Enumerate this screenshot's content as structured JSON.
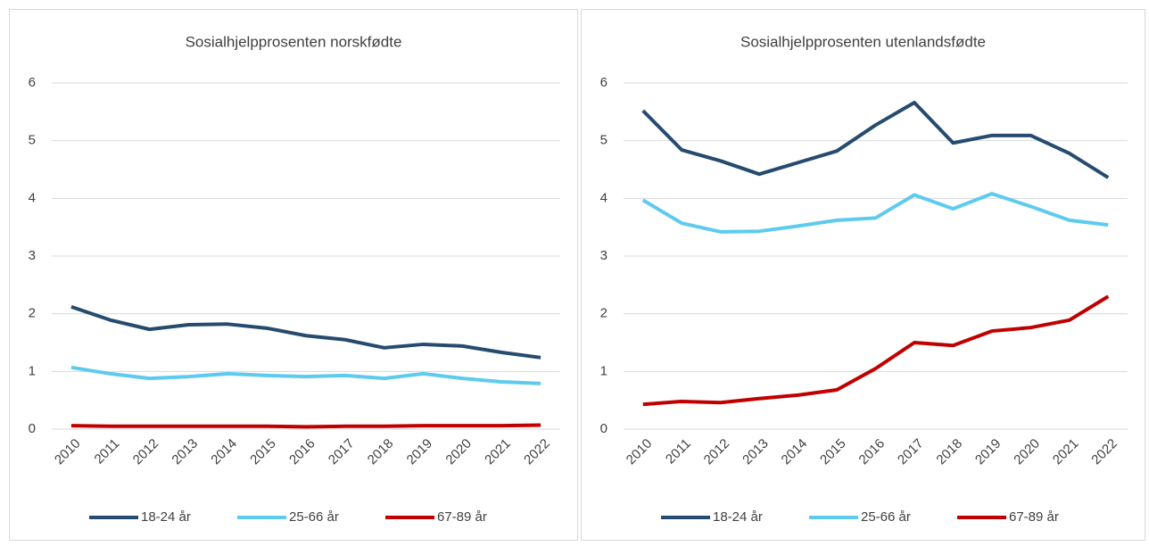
{
  "chart_data": [
    {
      "type": "line",
      "title": "Sosialhjelpprosenten norskfødte",
      "categories": [
        "2010",
        "2011",
        "2012",
        "2013",
        "2014",
        "2015",
        "2016",
        "2017",
        "2018",
        "2019",
        "2020",
        "2021",
        "2022"
      ],
      "ylim": [
        0,
        6
      ],
      "yticks": [
        0,
        1,
        2,
        3,
        4,
        5,
        6
      ],
      "grid": true,
      "legend": "bottom",
      "series": [
        {
          "name": "18-24 år",
          "color": "#264b6e",
          "values": [
            2.12,
            1.89,
            1.73,
            1.81,
            1.82,
            1.75,
            1.62,
            1.55,
            1.41,
            1.47,
            1.44,
            1.33,
            1.24
          ]
        },
        {
          "name": "25-66 år",
          "color": "#5ecbee",
          "values": [
            1.07,
            0.96,
            0.88,
            0.91,
            0.96,
            0.93,
            0.91,
            0.93,
            0.88,
            0.96,
            0.88,
            0.82,
            0.79
          ]
        },
        {
          "name": "67-89 år",
          "color": "#c00000",
          "values": [
            0.06,
            0.05,
            0.05,
            0.05,
            0.05,
            0.05,
            0.04,
            0.05,
            0.05,
            0.06,
            0.06,
            0.06,
            0.07
          ]
        }
      ]
    },
    {
      "type": "line",
      "title": "Sosialhjelpprosenten utenlandsfødte",
      "categories": [
        "2010",
        "2011",
        "2012",
        "2013",
        "2014",
        "2015",
        "2016",
        "2017",
        "2018",
        "2019",
        "2020",
        "2021",
        "2022"
      ],
      "ylim": [
        0,
        6
      ],
      "yticks": [
        0,
        1,
        2,
        3,
        4,
        5,
        6
      ],
      "grid": true,
      "legend": "bottom",
      "series": [
        {
          "name": "18-24 år",
          "color": "#264b6e",
          "values": [
            5.52,
            4.84,
            4.65,
            4.42,
            4.62,
            4.82,
            5.27,
            5.66,
            4.96,
            5.09,
            5.09,
            4.78,
            4.36
          ]
        },
        {
          "name": "25-66 år",
          "color": "#5ecbee",
          "values": [
            3.97,
            3.57,
            3.42,
            3.43,
            3.52,
            3.62,
            3.66,
            4.06,
            3.82,
            4.08,
            3.86,
            3.62,
            3.54
          ]
        },
        {
          "name": "67-89 år",
          "color": "#c00000",
          "values": [
            0.43,
            0.48,
            0.46,
            0.53,
            0.59,
            0.68,
            1.05,
            1.5,
            1.45,
            1.7,
            1.76,
            1.89,
            2.3
          ]
        }
      ]
    }
  ]
}
